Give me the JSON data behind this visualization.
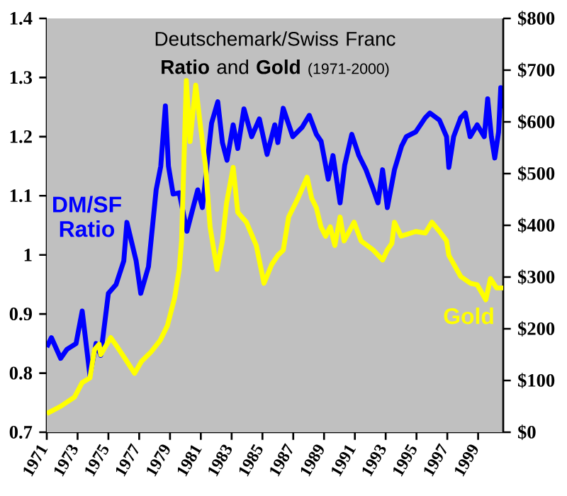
{
  "chart_data": {
    "type": "line",
    "title": "Deutschemark/Swiss Franc **Ratio** and **Gold**",
    "subtitle": "(1971-2000)",
    "xlim": [
      1971,
      2000.63
    ],
    "xticks": [
      1971,
      1973,
      1975,
      1977,
      1979,
      1981,
      1983,
      1985,
      1987,
      1989,
      1991,
      1993,
      1995,
      1997,
      1999
    ],
    "ylim": [
      0.7,
      1.4
    ],
    "yticks": [
      0.7,
      0.8,
      0.9,
      1,
      1.1,
      1.2,
      1.3,
      1.4
    ],
    "y2lim": [
      0,
      800
    ],
    "y2ticks": [
      {
        "value": 0,
        "label": "$0"
      },
      {
        "value": 100,
        "label": "$100"
      },
      {
        "value": 200,
        "label": "$200"
      },
      {
        "value": 300,
        "label": "$300"
      },
      {
        "value": 400,
        "label": "$400"
      },
      {
        "value": 500,
        "label": "$500"
      },
      {
        "value": 600,
        "label": "$600"
      },
      {
        "value": 700,
        "label": "$700"
      },
      {
        "value": 800,
        "label": "$800"
      }
    ],
    "series": [
      {
        "name": "DM/SF Ratio",
        "color": "#0000ff",
        "x": [
          1971.0,
          1971.3,
          1971.9,
          1972.3,
          1972.9,
          1973.3,
          1973.8,
          1974.2,
          1974.5,
          1975.0,
          1975.5,
          1976.0,
          1976.2,
          1976.8,
          1977.1,
          1977.6,
          1978.1,
          1978.4,
          1978.7,
          1978.9,
          1979.2,
          1979.6,
          1980.1,
          1980.5,
          1980.8,
          1981.1,
          1981.7,
          1982.1,
          1982.4,
          1982.7,
          1983.1,
          1983.4,
          1983.8,
          1984.3,
          1984.8,
          1985.3,
          1985.8,
          1986.0,
          1986.35,
          1986.97,
          1987.58,
          1988.04,
          1988.5,
          1988.81,
          1989.27,
          1989.58,
          1990.04,
          1990.34,
          1990.8,
          1991.26,
          1991.72,
          1992.18,
          1992.5,
          1992.8,
          1993.11,
          1993.57,
          1994.03,
          1994.34,
          1994.95,
          1995.57,
          1995.87,
          1996.49,
          1996.95,
          1997.1,
          1997.41,
          1997.87,
          1998.17,
          1998.48,
          1998.94,
          1999.4,
          1999.62,
          1999.86,
          2000.08,
          2000.33,
          2000.47,
          2000.63
        ],
        "values": [
          0.844,
          0.86,
          0.825,
          0.84,
          0.85,
          0.905,
          0.796,
          0.85,
          0.83,
          0.935,
          0.95,
          0.99,
          1.055,
          0.99,
          0.935,
          0.98,
          1.11,
          1.15,
          1.252,
          1.15,
          1.103,
          1.105,
          1.04,
          1.08,
          1.11,
          1.08,
          1.223,
          1.259,
          1.19,
          1.16,
          1.22,
          1.18,
          1.247,
          1.2,
          1.23,
          1.17,
          1.22,
          1.19,
          1.248,
          1.2,
          1.216,
          1.236,
          1.204,
          1.192,
          1.128,
          1.168,
          1.088,
          1.152,
          1.204,
          1.168,
          1.144,
          1.112,
          1.088,
          1.144,
          1.08,
          1.144,
          1.184,
          1.2,
          1.208,
          1.232,
          1.24,
          1.228,
          1.2,
          1.148,
          1.2,
          1.232,
          1.24,
          1.2,
          1.22,
          1.2,
          1.264,
          1.2,
          1.164,
          1.208,
          1.283,
          1.248
        ]
      },
      {
        "name": "Gold",
        "color": "#ffff00",
        "axis": "y2",
        "x": [
          1971.0,
          1971.9,
          1972.8,
          1973.3,
          1973.8,
          1974.1,
          1974.4,
          1974.5,
          1975.15,
          1975.6,
          1976.2,
          1976.7,
          1977.15,
          1977.76,
          1978.37,
          1978.83,
          1979.3,
          1979.6,
          1979.75,
          1979.85,
          1980.06,
          1980.3,
          1980.67,
          1980.95,
          1981.3,
          1981.6,
          1981.9,
          1982.05,
          1982.4,
          1982.67,
          1983.1,
          1983.4,
          1983.96,
          1984.6,
          1985.1,
          1985.6,
          1986.0,
          1986.35,
          1986.7,
          1987.3,
          1987.9,
          1988.2,
          1988.5,
          1988.8,
          1989.1,
          1989.4,
          1989.7,
          1990.04,
          1990.3,
          1990.95,
          1991.4,
          1992.2,
          1992.8,
          1993.1,
          1993.4,
          1993.57,
          1994.0,
          1994.95,
          1995.57,
          1996.0,
          1996.5,
          1996.95,
          1997.1,
          1997.87,
          1998.5,
          1998.94,
          1999.5,
          1999.8,
          2000.2,
          2000.63
        ],
        "values": [
          36,
          50,
          68,
          96,
          105,
          160,
          170,
          150,
          183,
          164,
          137,
          114,
          137,
          155,
          178,
          206,
          260,
          315,
          370,
          471,
          680,
          562,
          671,
          598,
          516,
          397,
          342,
          315,
          370,
          443,
          512,
          425,
          406,
          361,
          288,
          324,
          342,
          352,
          416,
          452,
          493,
          452,
          434,
          397,
          379,
          397,
          361,
          416,
          370,
          406,
          370,
          352,
          333,
          352,
          365,
          406,
          379,
          388,
          385,
          406,
          388,
          370,
          342,
          301,
          288,
          285,
          256,
          297,
          279,
          279
        ]
      }
    ]
  }
}
